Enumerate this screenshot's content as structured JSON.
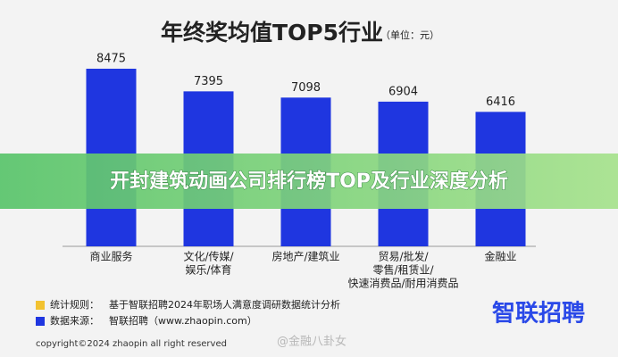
{
  "chart_data": {
    "type": "bar",
    "title": "年终奖均值TOP5行业",
    "unit": "（单位：元）",
    "categories": [
      [
        "商业服务"
      ],
      [
        "文化/传媒/",
        "娱乐/体育"
      ],
      [
        "房地产/建筑业"
      ],
      [
        "贸易/批发/",
        "零售/租赁业/",
        "快速消费品/耐用消费品"
      ],
      [
        "金融业"
      ]
    ],
    "values": [
      8475,
      7395,
      7098,
      6904,
      6416
    ],
    "color": "#1f36e0",
    "notes": [
      {
        "label": "统计规则：",
        "text": "基于智联招聘2024年职场人满意度调研数据统计分析",
        "color": "#f2c230"
      },
      {
        "label": "数据来源：",
        "text": "智联招聘（www.zhaopin.com）",
        "color": "#1f36e0"
      }
    ],
    "copyright": "copyright©2024 zhaopin all right reserved",
    "logo": "智联招聘",
    "watermark": "@金融八卦女",
    "banner": "开封建筑动画公司排行榜TOP及行业深度分析"
  }
}
